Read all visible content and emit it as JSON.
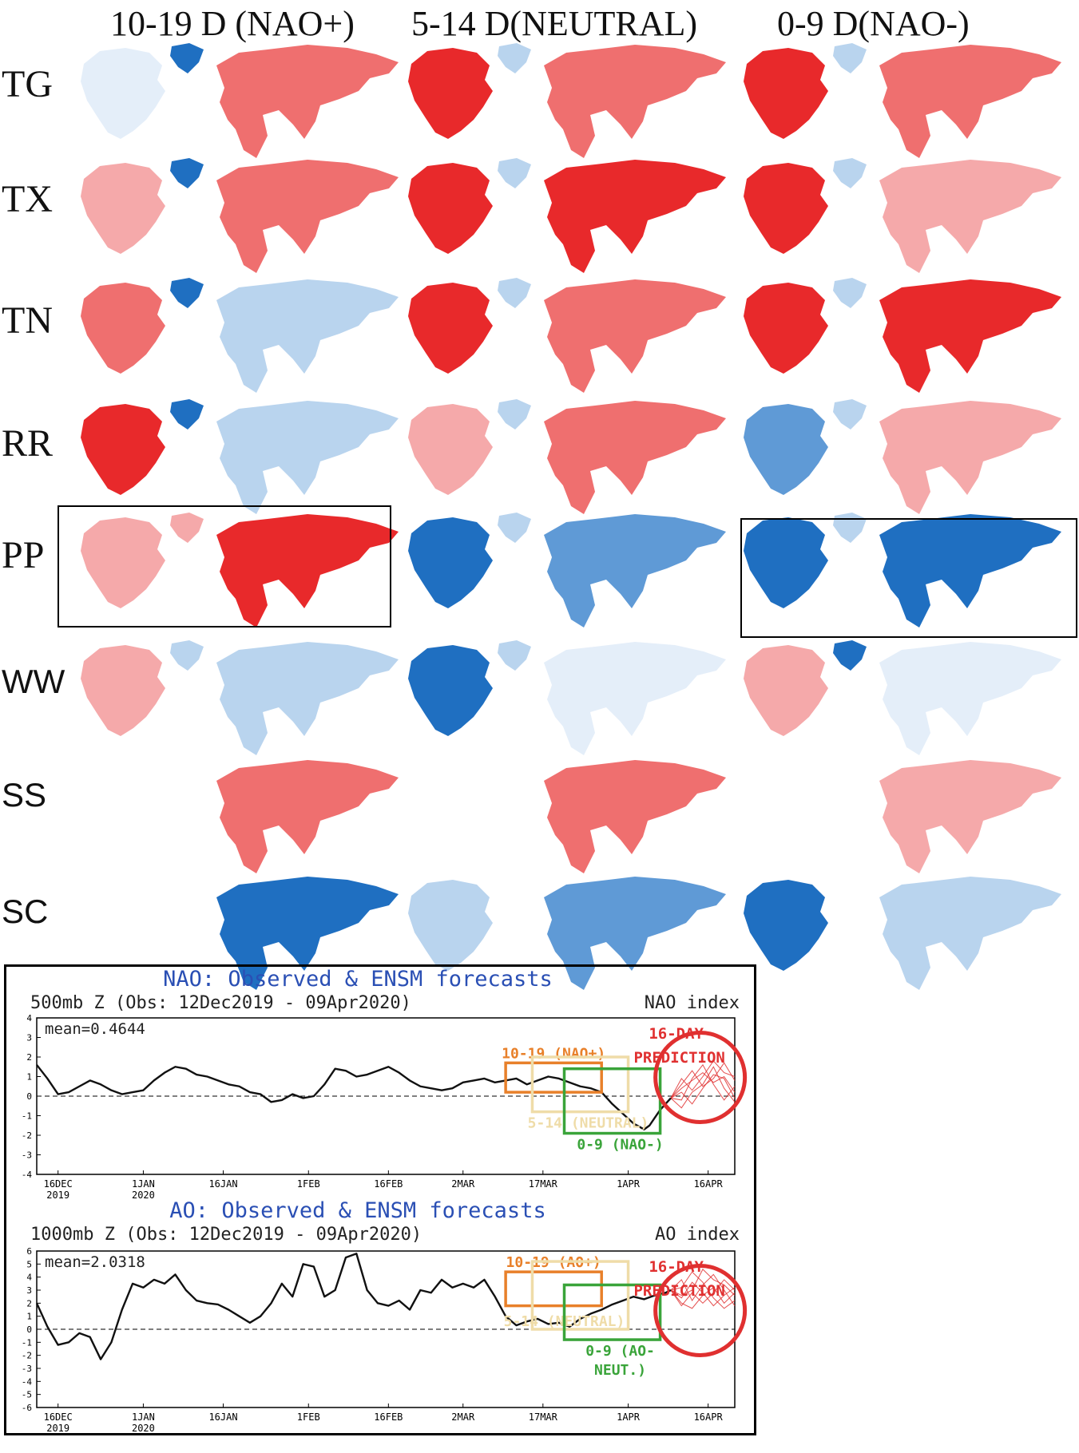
{
  "column_headers": [
    "10-19 D (NAO+)",
    "5-14 D(NEUTRAL)",
    "0-9 D(NAO-)"
  ],
  "row_labels": [
    "TG",
    "TX",
    "TN",
    "RR",
    "PP",
    "WW",
    "SS",
    "SC"
  ],
  "colors": {
    "red_strong": "#e8292b",
    "red_mid": "#ef6f6f",
    "red_light": "#f5a9aa",
    "blue_strong": "#1f6fc1",
    "blue_mid": "#5f9ad6",
    "blue_light": "#b9d4ee",
    "blue_pale": "#e4eef9",
    "orange_box": "#e8802a",
    "yellow_box": "#efdca8",
    "green_box": "#3aa43a",
    "forecast_red": "#e03030",
    "title_blue": "#2a4fb4"
  },
  "map_grid": [
    {
      "row": "TG",
      "cells": [
        {
          "na": "blue_pale",
          "gl": "blue_strong",
          "eu": "red_mid"
        },
        {
          "na": "red_strong",
          "gl": "blue_light",
          "eu": "red_mid"
        },
        {
          "na": "red_strong",
          "gl": "blue_light",
          "eu": "red_mid"
        }
      ]
    },
    {
      "row": "TX",
      "cells": [
        {
          "na": "red_light",
          "gl": "blue_strong",
          "eu": "red_mid"
        },
        {
          "na": "red_strong",
          "gl": "blue_light",
          "eu": "red_strong"
        },
        {
          "na": "red_strong",
          "gl": "blue_light",
          "eu": "red_light"
        }
      ]
    },
    {
      "row": "TN",
      "cells": [
        {
          "na": "red_mid",
          "gl": "blue_strong",
          "eu": "blue_light"
        },
        {
          "na": "red_strong",
          "gl": "blue_light",
          "eu": "red_mid"
        },
        {
          "na": "red_strong",
          "gl": "blue_light",
          "eu": "red_strong"
        }
      ]
    },
    {
      "row": "RR",
      "cells": [
        {
          "na": "red_strong",
          "gl": "blue_strong",
          "eu": "blue_light"
        },
        {
          "na": "red_light",
          "gl": "blue_light",
          "eu": "red_mid"
        },
        {
          "na": "blue_mid",
          "gl": "blue_light",
          "eu": "red_light"
        }
      ]
    },
    {
      "row": "PP",
      "cells": [
        {
          "na": "red_light",
          "gl": "red_light",
          "eu": "red_strong"
        },
        {
          "na": "blue_strong",
          "gl": "blue_light",
          "eu": "blue_mid"
        },
        {
          "na": "blue_strong",
          "gl": "blue_light",
          "eu": "blue_strong"
        }
      ]
    },
    {
      "row": "WW",
      "cells": [
        {
          "na": "red_light",
          "gl": "blue_light",
          "eu": "blue_light"
        },
        {
          "na": "blue_strong",
          "gl": "blue_light",
          "eu": "blue_pale"
        },
        {
          "na": "red_light",
          "gl": "blue_strong",
          "eu": "blue_pale"
        }
      ]
    },
    {
      "row": "SS",
      "cells": [
        {
          "na": null,
          "gl": null,
          "eu": "red_mid"
        },
        {
          "na": null,
          "gl": null,
          "eu": "red_mid"
        },
        {
          "na": null,
          "gl": null,
          "eu": "red_light"
        }
      ]
    },
    {
      "row": "SC",
      "cells": [
        {
          "na": null,
          "gl": null,
          "eu": "blue_strong"
        },
        {
          "na": "blue_light",
          "gl": null,
          "eu": "blue_mid"
        },
        {
          "na": "blue_strong",
          "gl": null,
          "eu": "blue_light"
        }
      ]
    }
  ],
  "highlighted": [
    {
      "row": "PP",
      "col": 0
    },
    {
      "row": "PP",
      "col": 2
    }
  ],
  "chart_data": [
    {
      "type": "line",
      "title": "NAO: Observed & ENSM forecasts",
      "subtitle": "500mb Z (Obs: 12Dec2019 - 09Apr2020)",
      "index_label": "NAO index",
      "mean_label": "mean=0.4644",
      "ylim": [
        -4,
        4
      ],
      "yticks": [
        4,
        3,
        2,
        1,
        0,
        -1,
        -2,
        -3,
        -4
      ],
      "xlim": [
        0,
        131
      ],
      "xticks": [
        {
          "x": 4,
          "label": "16DEC",
          "label2": "2019"
        },
        {
          "x": 20,
          "label": "1JAN",
          "label2": "2020"
        },
        {
          "x": 35,
          "label": "16JAN",
          "label2": ""
        },
        {
          "x": 51,
          "label": "1FEB",
          "label2": ""
        },
        {
          "x": 66,
          "label": "16FEB",
          "label2": ""
        },
        {
          "x": 80,
          "label": "2MAR",
          "label2": ""
        },
        {
          "x": 95,
          "label": "17MAR",
          "label2": ""
        },
        {
          "x": 111,
          "label": "1APR",
          "label2": ""
        },
        {
          "x": 126,
          "label": "16APR",
          "label2": ""
        }
      ],
      "observed": {
        "x": [
          0,
          2,
          4,
          6,
          8,
          10,
          12,
          14,
          16,
          18,
          20,
          22,
          24,
          26,
          28,
          30,
          32,
          34,
          36,
          38,
          40,
          42,
          44,
          46,
          48,
          50,
          52,
          54,
          56,
          58,
          60,
          62,
          64,
          66,
          68,
          70,
          72,
          74,
          76,
          78,
          80,
          82,
          84,
          86,
          88,
          90,
          92,
          94,
          96,
          98,
          100,
          102,
          104,
          106,
          108,
          110,
          112,
          114,
          115,
          116,
          117,
          118,
          119
        ],
        "y": [
          1.6,
          0.9,
          0.1,
          0.2,
          0.5,
          0.8,
          0.6,
          0.3,
          0.1,
          0.2,
          0.3,
          0.8,
          1.2,
          1.5,
          1.4,
          1.1,
          1.0,
          0.8,
          0.6,
          0.5,
          0.2,
          0.1,
          -0.3,
          -0.2,
          0.1,
          -0.1,
          0.0,
          0.6,
          1.4,
          1.3,
          1.0,
          1.1,
          1.3,
          1.5,
          1.2,
          0.8,
          0.5,
          0.4,
          0.3,
          0.4,
          0.7,
          0.8,
          0.9,
          0.7,
          0.8,
          0.9,
          0.6,
          0.8,
          1.0,
          0.9,
          0.7,
          0.5,
          0.4,
          0.2,
          -0.4,
          -0.9,
          -1.4,
          -1.7,
          -1.5,
          -1.1,
          -0.7,
          -0.4,
          -0.1
        ]
      },
      "forecast_members": [
        {
          "x": [
            119,
            121,
            123,
            125,
            127,
            129,
            131
          ],
          "y": [
            -0.1,
            0.4,
            0.8,
            1.2,
            0.7,
            1.0,
            0.2
          ]
        },
        {
          "x": [
            119,
            121,
            123,
            125,
            127,
            129,
            131
          ],
          "y": [
            -0.1,
            -0.6,
            0.2,
            0.6,
            1.5,
            0.4,
            -0.3
          ]
        },
        {
          "x": [
            119,
            121,
            123,
            125,
            127,
            129,
            131
          ],
          "y": [
            -0.1,
            0.6,
            1.3,
            0.5,
            0.9,
            1.7,
            0.8
          ]
        },
        {
          "x": [
            119,
            121,
            123,
            125,
            127,
            129,
            131
          ],
          "y": [
            -0.1,
            -0.2,
            0.9,
            1.6,
            0.6,
            -0.2,
            0.5
          ]
        },
        {
          "x": [
            119,
            121,
            123,
            125,
            127,
            129,
            131
          ],
          "y": [
            -0.1,
            0.9,
            0.3,
            1.0,
            1.8,
            1.2,
            1.0
          ]
        },
        {
          "x": [
            119,
            121,
            123,
            125,
            127,
            129,
            131
          ],
          "y": [
            -0.1,
            0.2,
            -0.4,
            0.4,
            1.1,
            0.9,
            -0.1
          ]
        }
      ],
      "boxes": [
        {
          "label": "10-19 (NAO+)",
          "color": "orange_box",
          "x0": 88,
          "x1": 106,
          "y0": 0.2,
          "y1": 1.7,
          "label_pos": "above"
        },
        {
          "label": "5-14 (NEUTRAL)",
          "color": "yellow_box",
          "x0": 93,
          "x1": 111,
          "y0": -0.8,
          "y1": 2.0,
          "label_pos": "below"
        },
        {
          "label": "0-9 (NAO-)",
          "color": "green_box",
          "x0": 99,
          "x1": 117,
          "y0": -1.9,
          "y1": 1.4,
          "label_pos": "below"
        }
      ],
      "prediction_label": [
        "16-DAY",
        "PREDICTION"
      ]
    },
    {
      "type": "line",
      "title": "AO: Observed & ENSM forecasts",
      "subtitle": "1000mb Z (Obs: 12Dec2019 - 09Apr2020)",
      "index_label": "AO index",
      "mean_label": "mean=2.0318",
      "ylim": [
        -6,
        6
      ],
      "yticks": [
        6,
        5,
        4,
        3,
        2,
        1,
        0,
        -1,
        -2,
        -3,
        -4,
        -5,
        -6
      ],
      "xlim": [
        0,
        131
      ],
      "xticks": [
        {
          "x": 4,
          "label": "16DEC",
          "label2": "2019"
        },
        {
          "x": 20,
          "label": "1JAN",
          "label2": "2020"
        },
        {
          "x": 35,
          "label": "16JAN",
          "label2": ""
        },
        {
          "x": 51,
          "label": "1FEB",
          "label2": ""
        },
        {
          "x": 66,
          "label": "16FEB",
          "label2": ""
        },
        {
          "x": 80,
          "label": "2MAR",
          "label2": ""
        },
        {
          "x": 95,
          "label": "17MAR",
          "label2": ""
        },
        {
          "x": 111,
          "label": "1APR",
          "label2": ""
        },
        {
          "x": 126,
          "label": "16APR",
          "label2": ""
        }
      ],
      "observed": {
        "x": [
          0,
          2,
          4,
          6,
          8,
          10,
          12,
          14,
          16,
          18,
          20,
          22,
          24,
          26,
          28,
          30,
          32,
          34,
          36,
          38,
          40,
          42,
          44,
          46,
          48,
          50,
          52,
          54,
          56,
          58,
          60,
          62,
          64,
          66,
          68,
          70,
          72,
          74,
          76,
          78,
          80,
          82,
          84,
          86,
          88,
          90,
          92,
          94,
          96,
          98,
          100,
          102,
          104,
          106,
          108,
          110,
          112,
          114,
          116,
          118,
          119
        ],
        "y": [
          2.0,
          0.2,
          -1.2,
          -1.0,
          -0.3,
          -0.6,
          -2.3,
          -1.0,
          1.5,
          3.5,
          3.2,
          3.8,
          3.5,
          4.2,
          3.0,
          2.2,
          2.0,
          1.9,
          1.5,
          1.0,
          0.5,
          1.0,
          2.0,
          3.5,
          2.5,
          5.0,
          4.8,
          2.5,
          3.0,
          5.5,
          5.8,
          3.0,
          2.0,
          1.8,
          2.2,
          1.5,
          3.0,
          2.8,
          3.8,
          3.2,
          3.5,
          3.2,
          3.8,
          2.5,
          1.0,
          0.3,
          0.6,
          0.8,
          0.4,
          0.5,
          0.2,
          0.8,
          1.2,
          1.5,
          1.9,
          2.2,
          2.5,
          2.3,
          2.6,
          2.8,
          3.0
        ]
      },
      "forecast_members": [
        {
          "x": [
            119,
            121,
            123,
            125,
            127,
            129,
            131
          ],
          "y": [
            3.0,
            2.4,
            3.6,
            2.8,
            1.8,
            2.6,
            3.2
          ]
        },
        {
          "x": [
            119,
            121,
            123,
            125,
            127,
            129,
            131
          ],
          "y": [
            3.0,
            3.8,
            2.2,
            3.4,
            4.2,
            3.0,
            1.8
          ]
        },
        {
          "x": [
            119,
            121,
            123,
            125,
            127,
            129,
            131
          ],
          "y": [
            3.0,
            2.0,
            1.6,
            2.6,
            3.2,
            2.0,
            2.8
          ]
        },
        {
          "x": [
            119,
            121,
            123,
            125,
            127,
            129,
            131
          ],
          "y": [
            3.0,
            3.2,
            4.4,
            3.6,
            2.4,
            1.6,
            2.2
          ]
        },
        {
          "x": [
            119,
            121,
            123,
            125,
            127,
            129,
            131
          ],
          "y": [
            3.0,
            2.6,
            3.0,
            4.6,
            3.8,
            3.4,
            2.6
          ]
        },
        {
          "x": [
            119,
            121,
            123,
            125,
            127,
            129,
            131
          ],
          "y": [
            3.0,
            1.8,
            2.8,
            2.0,
            2.8,
            3.8,
            3.0
          ]
        }
      ],
      "boxes": [
        {
          "label": "10-19 (AO+)",
          "color": "orange_box",
          "x0": 88,
          "x1": 106,
          "y0": 1.8,
          "y1": 4.4,
          "label_pos": "above"
        },
        {
          "label": "5-14 (NEUTRAL)",
          "color": "yellow_box",
          "x0": 93,
          "x1": 111,
          "y0": 0.0,
          "y1": 5.2,
          "label_pos": "left"
        },
        {
          "label": "0-9 (AO-\nNEUT.)",
          "color": "green_box",
          "x0": 99,
          "x1": 117,
          "y0": -0.8,
          "y1": 3.4,
          "label_pos": "below"
        }
      ],
      "prediction_label": [
        "16-DAY",
        "PREDICTION"
      ]
    }
  ]
}
